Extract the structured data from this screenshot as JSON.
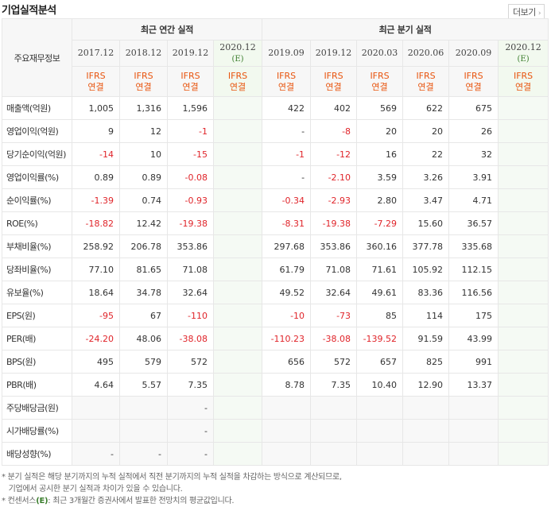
{
  "title": "기업실적분석",
  "more_label": "더보기",
  "more_icon": "chevron-right-icon",
  "header": {
    "row_label": "주요재무정보",
    "annual_group": "최근 연간 실적",
    "quarter_group": "최근 분기 실적",
    "annual_periods": [
      "2017.12",
      "2018.12",
      "2019.12",
      "2020.12"
    ],
    "annual_estimate": "(E)",
    "quarter_periods": [
      "2019.09",
      "2019.12",
      "2020.03",
      "2020.06",
      "2020.09",
      "2020.12"
    ],
    "quarter_estimate": "(E)",
    "ifrs_line1": "IFRS",
    "ifrs_line2": "연결"
  },
  "rows": [
    {
      "label": "매출액(억원)",
      "values": [
        "1,005",
        "1,316",
        "1,596",
        "",
        "422",
        "402",
        "569",
        "622",
        "675",
        ""
      ]
    },
    {
      "label": "영업이익(억원)",
      "values": [
        "9",
        "12",
        "-1",
        "",
        "-",
        "-8",
        "20",
        "20",
        "26",
        ""
      ]
    },
    {
      "label": "당기순이익(억원)",
      "values": [
        "-14",
        "10",
        "-15",
        "",
        "-1",
        "-12",
        "16",
        "22",
        "32",
        ""
      ]
    },
    {
      "label": "영업이익률(%)",
      "values": [
        "0.89",
        "0.89",
        "-0.08",
        "",
        "-",
        "-2.10",
        "3.59",
        "3.26",
        "3.91",
        ""
      ]
    },
    {
      "label": "순이익률(%)",
      "values": [
        "-1.39",
        "0.74",
        "-0.93",
        "",
        "-0.34",
        "-2.93",
        "2.80",
        "3.47",
        "4.71",
        ""
      ]
    },
    {
      "label": "ROE(%)",
      "values": [
        "-18.82",
        "12.42",
        "-19.38",
        "",
        "-8.31",
        "-19.38",
        "-7.29",
        "15.60",
        "36.57",
        ""
      ]
    },
    {
      "label": "부채비율(%)",
      "values": [
        "258.92",
        "206.78",
        "353.86",
        "",
        "297.68",
        "353.86",
        "360.16",
        "377.78",
        "335.68",
        ""
      ]
    },
    {
      "label": "당좌비율(%)",
      "values": [
        "77.10",
        "81.65",
        "71.08",
        "",
        "61.79",
        "71.08",
        "71.61",
        "105.92",
        "112.15",
        ""
      ]
    },
    {
      "label": "유보율(%)",
      "values": [
        "18.64",
        "34.78",
        "32.64",
        "",
        "49.52",
        "32.64",
        "49.61",
        "83.36",
        "116.56",
        ""
      ]
    },
    {
      "label": "EPS(원)",
      "values": [
        "-95",
        "67",
        "-110",
        "",
        "-10",
        "-73",
        "85",
        "114",
        "175",
        ""
      ]
    },
    {
      "label": "PER(배)",
      "values": [
        "-24.20",
        "48.06",
        "-38.08",
        "",
        "-110.23",
        "-38.08",
        "-139.52",
        "91.59",
        "43.99",
        ""
      ]
    },
    {
      "label": "BPS(원)",
      "values": [
        "495",
        "579",
        "572",
        "",
        "656",
        "572",
        "657",
        "825",
        "991",
        ""
      ]
    },
    {
      "label": "PBR(배)",
      "values": [
        "4.64",
        "5.57",
        "7.35",
        "",
        "8.78",
        "7.35",
        "10.40",
        "12.90",
        "13.37",
        ""
      ]
    },
    {
      "label": "주당배당금(원)",
      "values": [
        "",
        "",
        "-",
        "",
        "",
        "",
        "",
        "",
        "",
        ""
      ]
    },
    {
      "label": "시가배당률(%)",
      "values": [
        "",
        "",
        "-",
        "",
        "",
        "",
        "",
        "",
        "",
        ""
      ]
    },
    {
      "label": "배당성향(%)",
      "values": [
        "-",
        "-",
        "-",
        "",
        "",
        "",
        "",
        "",
        "",
        ""
      ]
    }
  ],
  "notes": [
    "분기 실적은 해당 분기까지의 누적 실적에서 직전 분기까지의 누적 실적을 차감하는 방식으로 계산되므로,",
    "기업에서 공시한 분기 실적과 차이가 있을 수 있습니다.",
    "컨센서스",
    "(E)",
    ": 최근 3개월간 증권사에서 발표한 전망치의 평균값입니다."
  ],
  "colors": {
    "negative": "#e0242a",
    "ifrs": "#e8550f",
    "estimate": "#3a7d2c",
    "estimate_bg": "#f5faf4"
  }
}
